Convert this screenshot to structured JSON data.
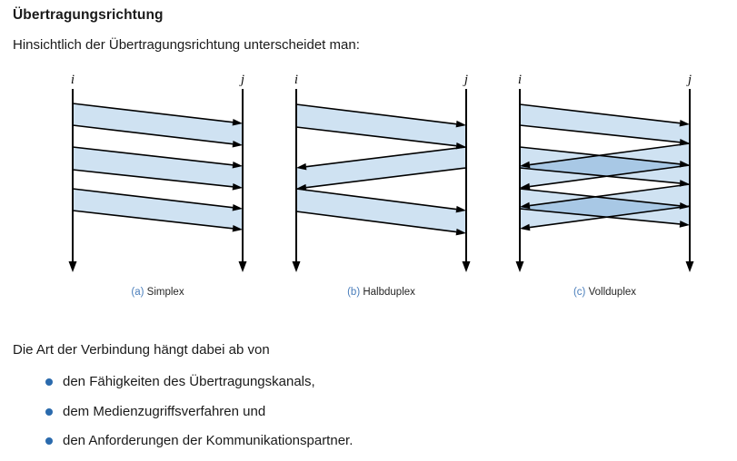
{
  "title": "Übertragungsrichtung",
  "intro": "Hinsichtlich der Übertragungsrichtung unterscheidet man:",
  "outro": "Die Art der Verbindung hängt dabei ab von",
  "bullets": [
    "den Fähigkeiten des Übertragungskanals,",
    "dem Medienzugriffsverfahren und",
    "den Anforderungen der Kommunikationspartner."
  ],
  "colors": {
    "band_fill": "#cfe2f2",
    "band_overlap": "#a8c8e6",
    "ink": "#000000",
    "text": "#1a1a1a",
    "caption_accent": "#4a7ebb",
    "bullet_accent": "#2a6aad"
  },
  "diagrams": [
    {
      "key": "simplex",
      "caption_prefix": "(a)",
      "caption": "Simplex",
      "endpoints": {
        "left": "i",
        "right": "j"
      },
      "bands": [
        {
          "from": "i",
          "to": "j",
          "y_from": [
            36,
            60
          ],
          "y_to": [
            58,
            82
          ]
        },
        {
          "from": "i",
          "to": "j",
          "y_from": [
            84,
            109
          ],
          "y_to": [
            105,
            129
          ]
        },
        {
          "from": "i",
          "to": "j",
          "y_from": [
            130,
            154
          ],
          "y_to": [
            152,
            175
          ]
        }
      ]
    },
    {
      "key": "halbduplex",
      "caption_prefix": "(b)",
      "caption": "Halbduplex",
      "endpoints": {
        "left": "i",
        "right": "j"
      },
      "bands": [
        {
          "from": "i",
          "to": "j",
          "y_from": [
            37,
            62
          ],
          "y_to": [
            60,
            84
          ]
        },
        {
          "from": "j",
          "to": "i",
          "y_from": [
            84,
            107
          ],
          "y_to": [
            107,
            130
          ]
        },
        {
          "from": "i",
          "to": "j",
          "y_from": [
            130,
            155
          ],
          "y_to": [
            154,
            179
          ]
        }
      ]
    },
    {
      "key": "vollduplex",
      "caption_prefix": "(c)",
      "caption": "Vollduplex",
      "endpoints": {
        "left": "i",
        "right": "j"
      },
      "bands": [
        {
          "from": "i",
          "to": "j",
          "y_from": [
            37,
            60
          ],
          "y_to": [
            59,
            80
          ]
        },
        {
          "from": "j",
          "to": "i",
          "y_from": [
            80,
            104
          ],
          "y_to": [
            105,
            129
          ]
        },
        {
          "from": "i",
          "to": "j",
          "y_from": [
            84,
            107
          ],
          "y_to": [
            104,
            125
          ]
        },
        {
          "from": "j",
          "to": "i",
          "y_from": [
            125,
            149
          ],
          "y_to": [
            150,
            174
          ]
        },
        {
          "from": "i",
          "to": "j",
          "y_from": [
            130,
            152
          ],
          "y_to": [
            150,
            170
          ]
        }
      ]
    }
  ]
}
